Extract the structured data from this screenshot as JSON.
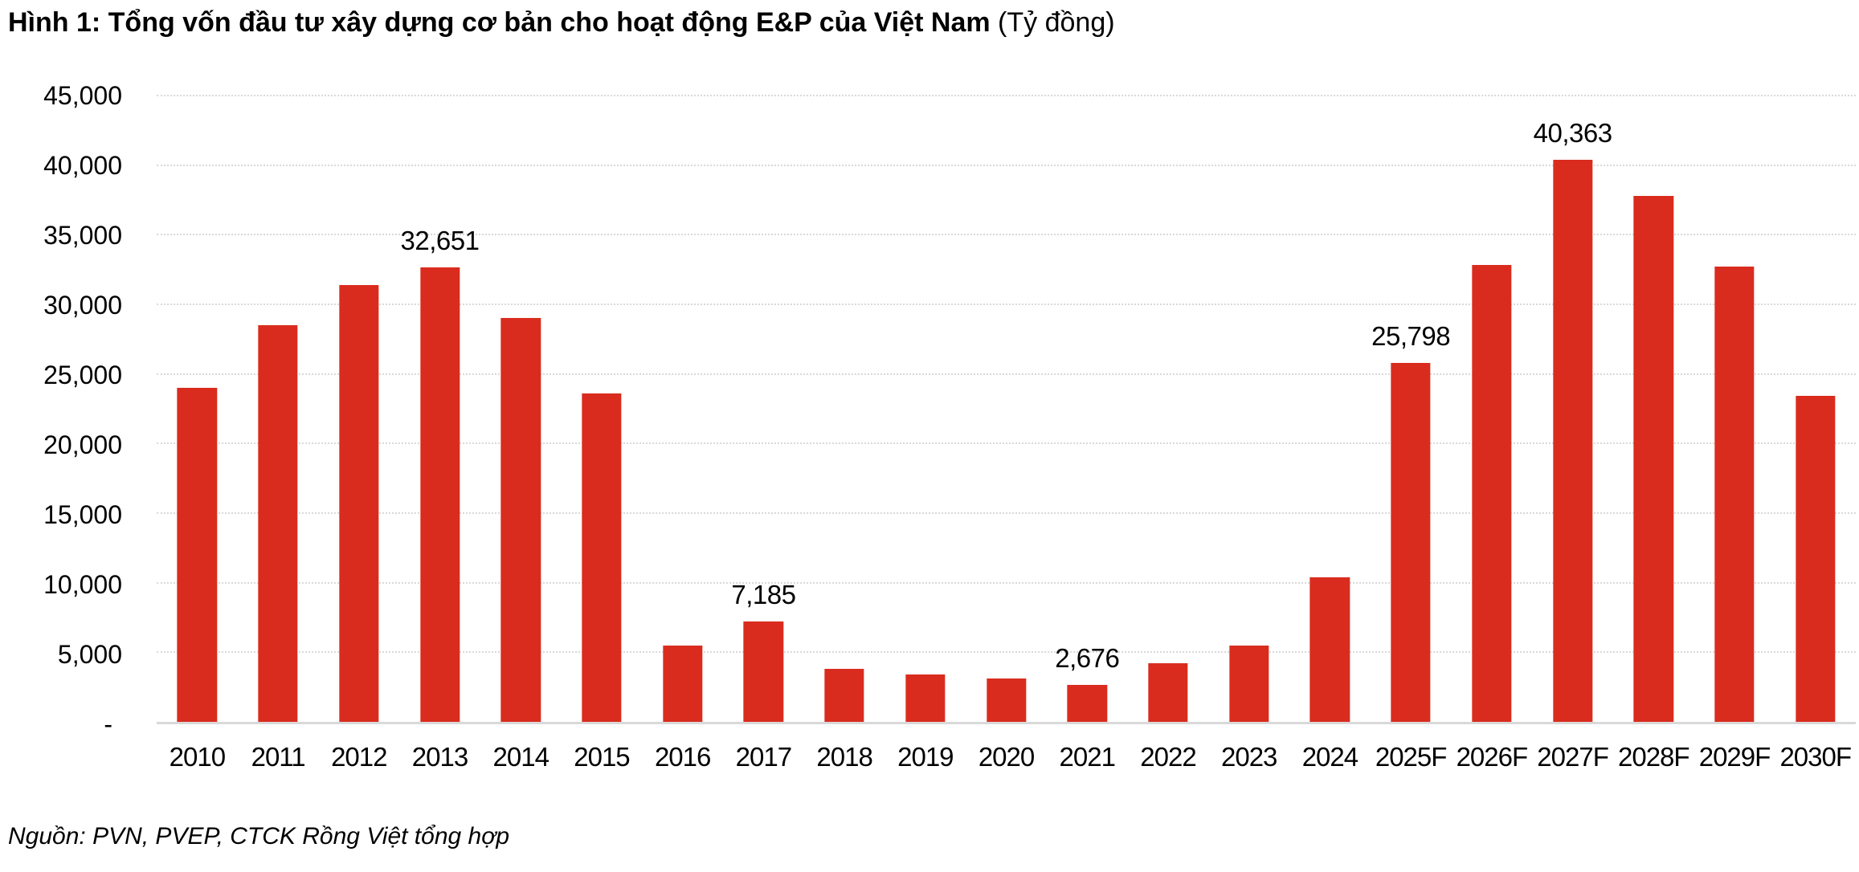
{
  "title": {
    "main": "Hình 1: Tổng vốn đầu tư xây dựng cơ bản cho hoạt động E&P của Việt Nam",
    "unit": " (Tỷ đồng)"
  },
  "source": "Nguồn: PVN, PVEP, CTCK Rồng Việt tổng hợp",
  "chart_data": {
    "type": "bar",
    "title": "Hình 1: Tổng vốn đầu tư xây dựng cơ bản cho hoạt động E&P của Việt Nam (Tỷ đồng)",
    "categories": [
      "2010",
      "2011",
      "2012",
      "2013",
      "2014",
      "2015",
      "2016",
      "2017",
      "2018",
      "2019",
      "2020",
      "2021",
      "2022",
      "2023",
      "2024",
      "2025F",
      "2026F",
      "2027F",
      "2028F",
      "2029F",
      "2030F"
    ],
    "values": [
      24000,
      28500,
      31400,
      32651,
      29000,
      23600,
      5500,
      7185,
      3800,
      3400,
      3100,
      2676,
      4200,
      5500,
      10400,
      25798,
      32800,
      40363,
      37800,
      32700,
      23400
    ],
    "data_labels": [
      null,
      null,
      null,
      "32,651",
      null,
      null,
      null,
      "7,185",
      null,
      null,
      null,
      "2,676",
      null,
      null,
      null,
      "25,798",
      null,
      "40,363",
      null,
      null,
      null
    ],
    "yticks": [
      {
        "label": "45,000",
        "value": 45000
      },
      {
        "label": "40,000",
        "value": 40000
      },
      {
        "label": "35,000",
        "value": 35000
      },
      {
        "label": "30,000",
        "value": 30000
      },
      {
        "label": "25,000",
        "value": 25000
      },
      {
        "label": "20,000",
        "value": 20000
      },
      {
        "label": "15,000",
        "value": 15000
      },
      {
        "label": "10,000",
        "value": 10000
      },
      {
        "label": "5,000",
        "value": 5000
      },
      {
        "label": "-",
        "value": 0
      }
    ],
    "ylim": [
      0,
      45000
    ],
    "xlabel": "",
    "ylabel": "",
    "grid": true,
    "legend": false,
    "bar_color": "#d92c1e",
    "gridline_color": "#d9d9d9",
    "axis_line_color": "#d9d9d9",
    "text_color": "#000000"
  }
}
